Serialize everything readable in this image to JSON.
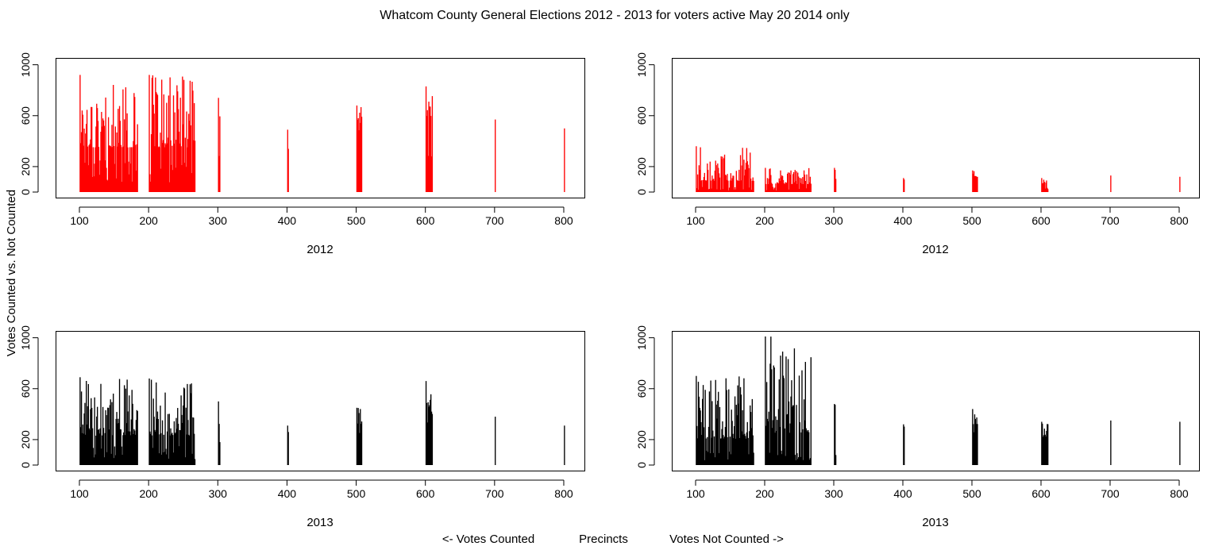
{
  "title": "Whatcom County General Elections 2012 - 2013 for voters active May 20 2014 only",
  "ylabel": "Votes Counted vs. Not Counted",
  "footer": {
    "left": "<- Votes Counted",
    "center": "Precincts",
    "right": "Votes Not Counted ->"
  },
  "chart_data": [
    {
      "type": "bar",
      "panel": "top-left",
      "xlabel": "2012",
      "color": "#ff0000",
      "xlim": [
        100,
        800
      ],
      "ylim": [
        0,
        1000
      ],
      "xticks": [
        100,
        200,
        300,
        400,
        500,
        600,
        700,
        800
      ],
      "yticks": [
        0,
        200,
        600,
        1000
      ],
      "groups": [
        {
          "start": 101,
          "end": 184,
          "min": 250,
          "max": 920
        },
        {
          "start": 201,
          "end": 267,
          "min": 250,
          "max": 920
        },
        {
          "start": 301,
          "end": 303,
          "min": 200,
          "max": 740
        },
        {
          "start": 401,
          "end": 402,
          "min": 420,
          "max": 490
        },
        {
          "start": 501,
          "end": 508,
          "min": 450,
          "max": 680
        },
        {
          "start": 601,
          "end": 610,
          "min": 550,
          "max": 830
        },
        {
          "start": 701,
          "end": 701,
          "min": 570,
          "max": 570
        },
        {
          "start": 801,
          "end": 801,
          "min": 500,
          "max": 500
        }
      ]
    },
    {
      "type": "bar",
      "panel": "top-right",
      "xlabel": "2012",
      "color": "#ff0000",
      "xlim": [
        100,
        800
      ],
      "ylim": [
        0,
        1000
      ],
      "xticks": [
        100,
        200,
        300,
        400,
        500,
        600,
        700,
        800
      ],
      "yticks": [
        0,
        200,
        600,
        1000
      ],
      "groups": [
        {
          "start": 101,
          "end": 184,
          "min": 40,
          "max": 360
        },
        {
          "start": 201,
          "end": 267,
          "min": 40,
          "max": 190
        },
        {
          "start": 301,
          "end": 303,
          "min": 60,
          "max": 190
        },
        {
          "start": 401,
          "end": 402,
          "min": 90,
          "max": 110
        },
        {
          "start": 501,
          "end": 508,
          "min": 110,
          "max": 170
        },
        {
          "start": 601,
          "end": 610,
          "min": 60,
          "max": 110
        },
        {
          "start": 701,
          "end": 701,
          "min": 130,
          "max": 130
        },
        {
          "start": 801,
          "end": 801,
          "min": 120,
          "max": 120
        }
      ]
    },
    {
      "type": "bar",
      "panel": "bottom-left",
      "xlabel": "2013",
      "color": "#000000",
      "xlim": [
        100,
        800
      ],
      "ylim": [
        0,
        1000
      ],
      "xticks": [
        100,
        200,
        300,
        400,
        500,
        600,
        700,
        800
      ],
      "yticks": [
        0,
        200,
        600,
        1000
      ],
      "groups": [
        {
          "start": 101,
          "end": 184,
          "min": 150,
          "max": 690
        },
        {
          "start": 201,
          "end": 267,
          "min": 150,
          "max": 680
        },
        {
          "start": 301,
          "end": 303,
          "min": 120,
          "max": 500
        },
        {
          "start": 401,
          "end": 402,
          "min": 250,
          "max": 310
        },
        {
          "start": 501,
          "end": 508,
          "min": 300,
          "max": 450
        },
        {
          "start": 601,
          "end": 610,
          "min": 350,
          "max": 660
        },
        {
          "start": 701,
          "end": 701,
          "min": 380,
          "max": 380
        },
        {
          "start": 801,
          "end": 801,
          "min": 310,
          "max": 310
        }
      ]
    },
    {
      "type": "bar",
      "panel": "bottom-right",
      "xlabel": "2013",
      "color": "#000000",
      "xlim": [
        100,
        800
      ],
      "ylim": [
        0,
        1000
      ],
      "xticks": [
        100,
        200,
        300,
        400,
        500,
        600,
        700,
        800
      ],
      "yticks": [
        0,
        200,
        600,
        1000
      ],
      "groups": [
        {
          "start": 101,
          "end": 184,
          "min": 120,
          "max": 700
        },
        {
          "start": 201,
          "end": 267,
          "min": 120,
          "max": 1010
        },
        {
          "start": 301,
          "end": 303,
          "min": 150,
          "max": 480
        },
        {
          "start": 401,
          "end": 402,
          "min": 280,
          "max": 320
        },
        {
          "start": 501,
          "end": 508,
          "min": 300,
          "max": 440
        },
        {
          "start": 601,
          "end": 610,
          "min": 200,
          "max": 340
        },
        {
          "start": 701,
          "end": 701,
          "min": 350,
          "max": 350
        },
        {
          "start": 801,
          "end": 801,
          "min": 340,
          "max": 340
        }
      ]
    }
  ]
}
